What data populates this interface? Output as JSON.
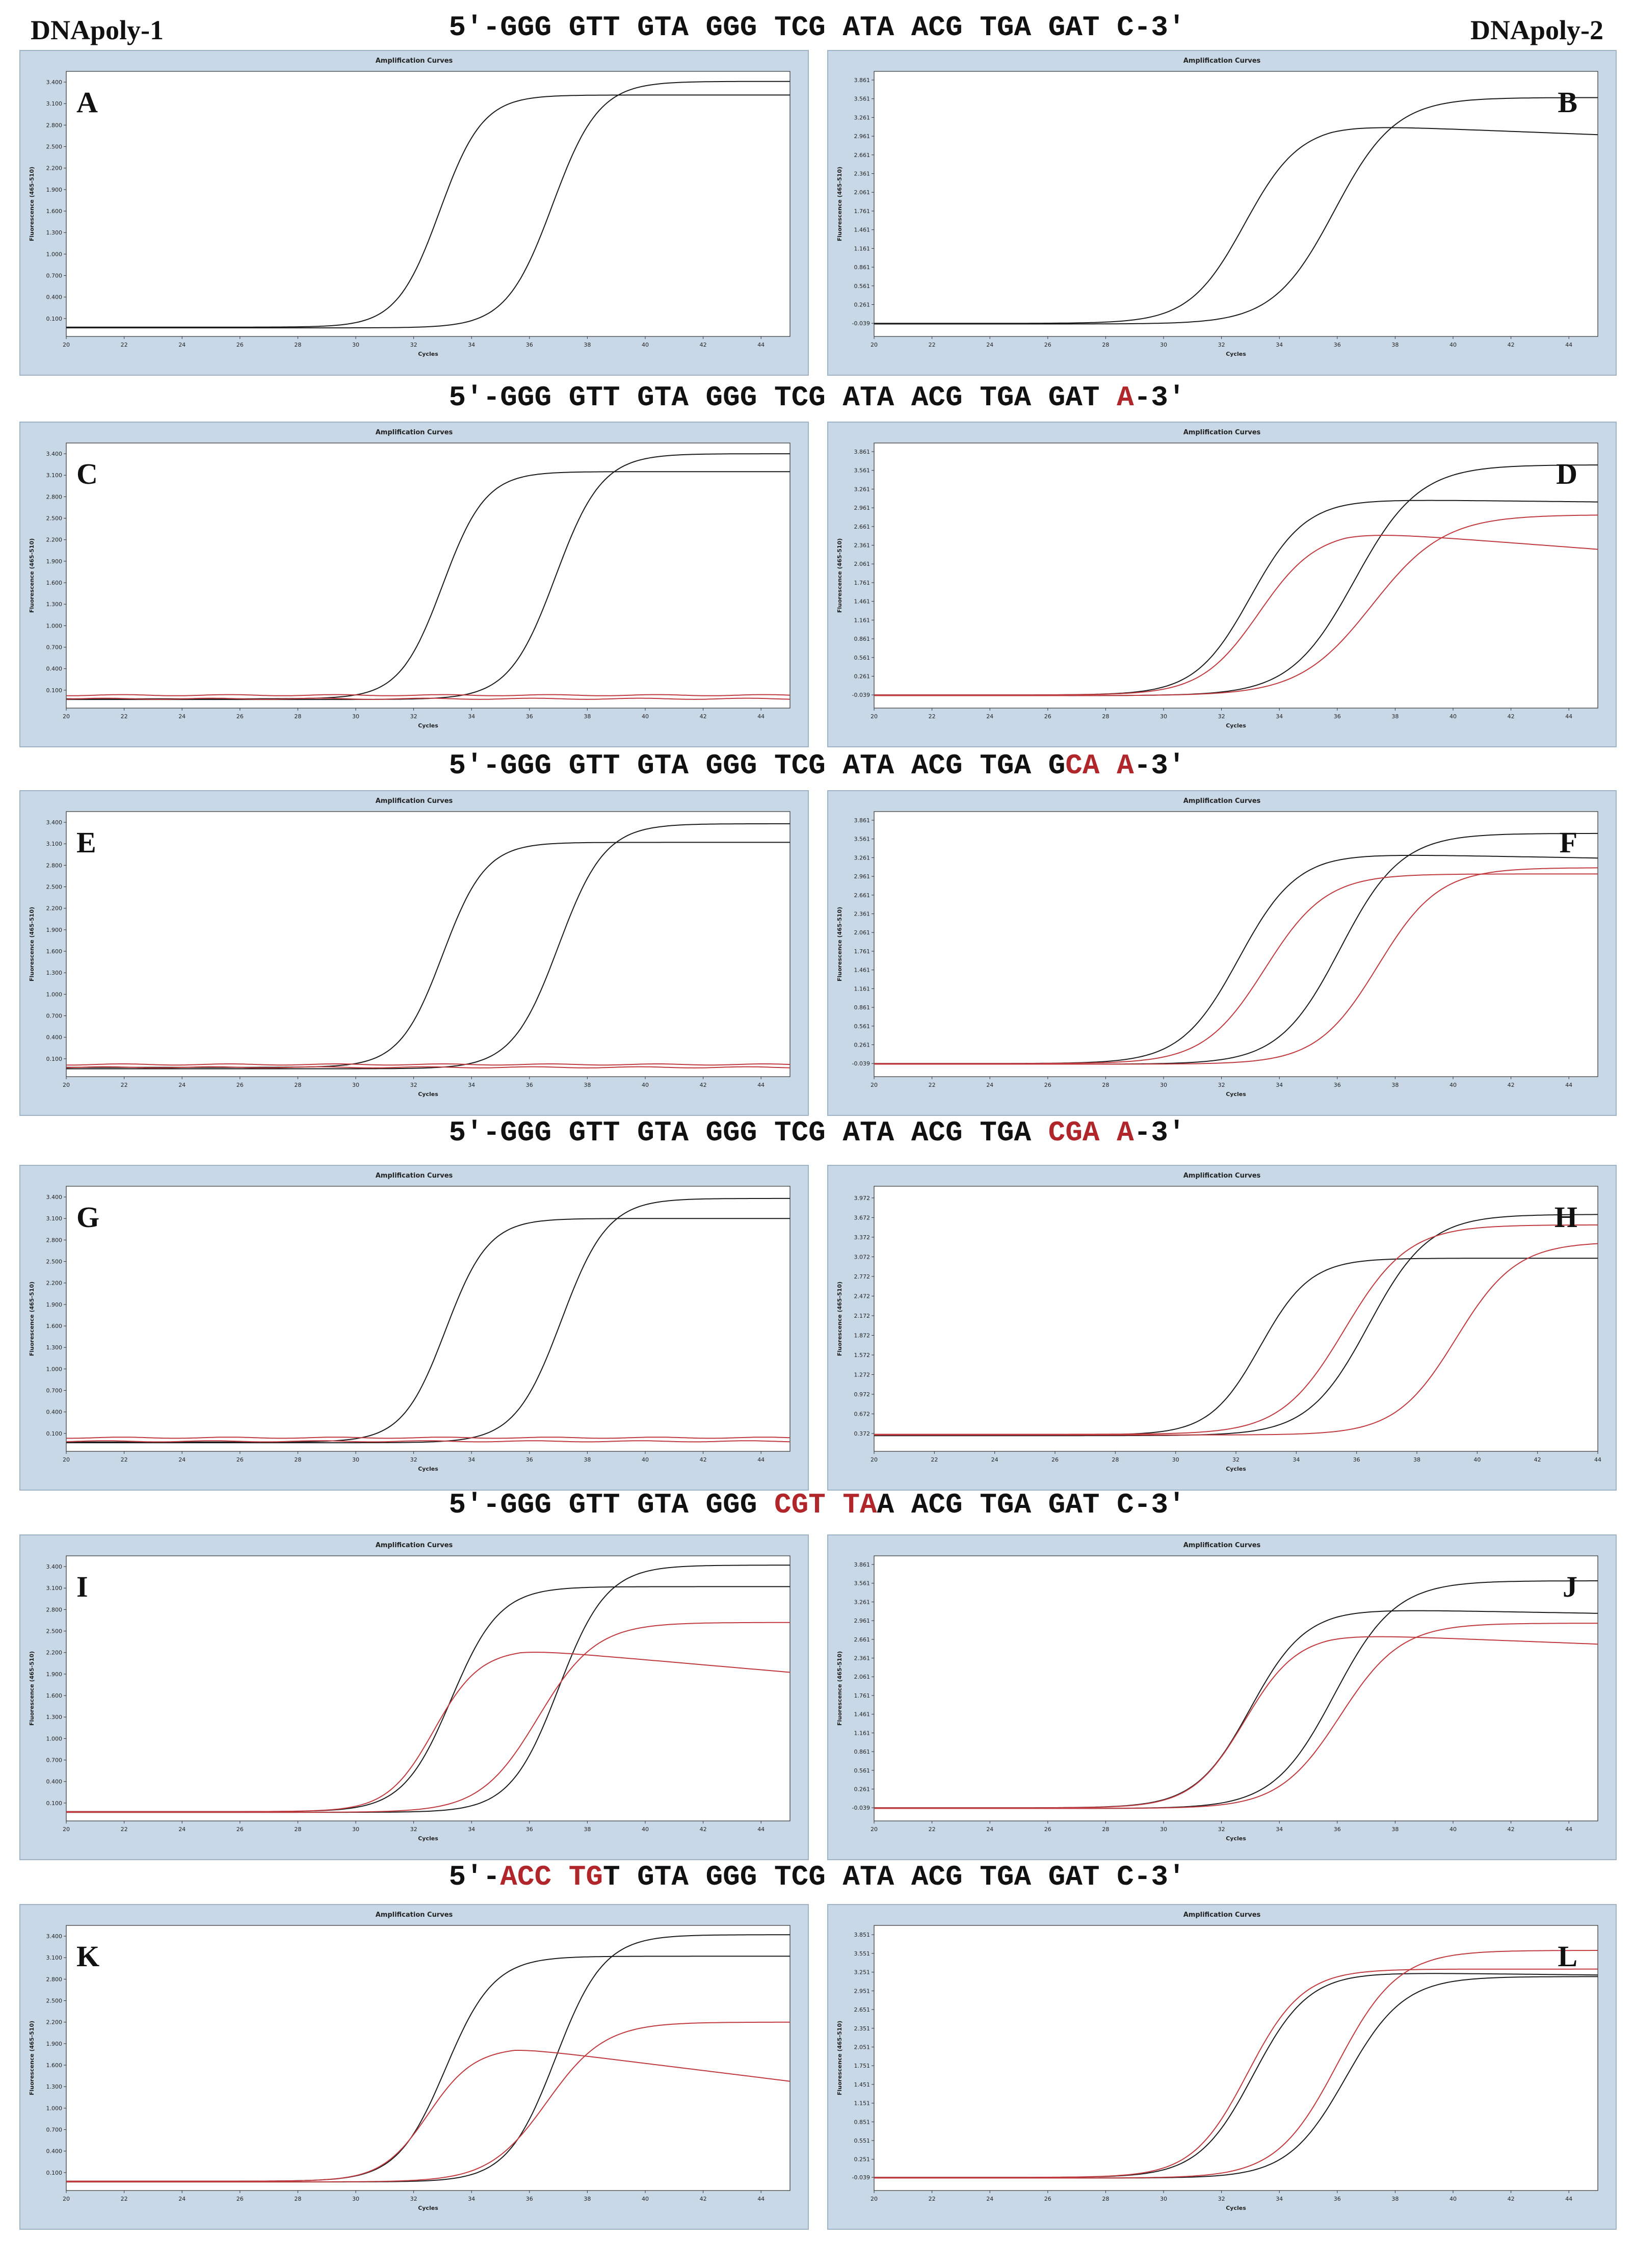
{
  "header": {
    "left_label": "DNApoly-1",
    "right_label": "DNApoly-2"
  },
  "sequences": [
    {
      "segments": [
        {
          "t": "5′-GGG GTT GTA GGG TCG ATA ACG TGA GAT C-3′",
          "red": false
        }
      ]
    },
    {
      "segments": [
        {
          "t": "5′-GGG GTT GTA GGG TCG ATA ACG TGA GAT ",
          "red": false
        },
        {
          "t": "A",
          "red": true
        },
        {
          "t": "-3′",
          "red": false
        }
      ]
    },
    {
      "segments": [
        {
          "t": "5′-GGG GTT GTA GGG TCG ATA ACG TGA G",
          "red": false
        },
        {
          "t": "CA A",
          "red": true
        },
        {
          "t": "-3′",
          "red": false
        }
      ]
    },
    {
      "segments": [
        {
          "t": "5′-GGG GTT GTA GGG TCG ATA ACG TGA ",
          "red": false
        },
        {
          "t": "CGA A",
          "red": true
        },
        {
          "t": "-3′",
          "red": false
        }
      ]
    },
    {
      "segments": [
        {
          "t": "5′-GGG GTT GTA GGG ",
          "red": false
        },
        {
          "t": "CGT TA",
          "red": true
        },
        {
          "t": "A ACG TGA GAT C-3′",
          "red": false
        }
      ]
    },
    {
      "segments": [
        {
          "t": "5′-",
          "red": false
        },
        {
          "t": "ACC TG",
          "red": true
        },
        {
          "t": "T GTA GGG TCG ATA ACG TGA GAT C-3′",
          "red": false
        }
      ]
    }
  ],
  "colors": {
    "target": "#1a1a1a",
    "variant": "#c0393e",
    "panel_bg": "#c9d8e6"
  },
  "chart_data": [
    {
      "letter": "A",
      "type": "line",
      "title": "Amplification Curves",
      "xlabel": "Cycles",
      "ylabel": "Fluorescence (465-510)",
      "xlim": [
        20,
        45
      ],
      "xticks": [
        20,
        22,
        24,
        26,
        28,
        30,
        32,
        34,
        36,
        38,
        40,
        42,
        44
      ],
      "yticks": [
        0.1,
        0.4,
        0.7,
        1.0,
        1.3,
        1.6,
        1.9,
        2.2,
        2.5,
        2.8,
        3.1,
        3.4
      ],
      "ytick_labels": [
        "0.100",
        "0.400",
        "0.700",
        "1.000",
        "1.300",
        "1.600",
        "1.900",
        "2.200",
        "2.500",
        "2.800",
        "3.100",
        "3.400"
      ],
      "ylim": [
        -0.15,
        3.55
      ],
      "series": [
        {
          "color": "black",
          "base": -0.02,
          "max": 3.22,
          "mid": 32.9,
          "k": 1.35,
          "decay": 0
        },
        {
          "color": "black",
          "base": -0.03,
          "max": 3.41,
          "mid": 36.8,
          "k": 1.25,
          "decay": 0
        }
      ]
    },
    {
      "letter": "B",
      "type": "line",
      "title": "Amplification Curves",
      "xlabel": "Cycles",
      "ylabel": "Fluorescence (465-510)",
      "xlim": [
        20,
        45
      ],
      "xticks": [
        20,
        22,
        24,
        26,
        28,
        30,
        32,
        34,
        36,
        38,
        40,
        42,
        44
      ],
      "yticks": [
        -0.039,
        0.261,
        0.561,
        0.861,
        1.161,
        1.461,
        1.761,
        2.061,
        2.361,
        2.661,
        2.961,
        3.261,
        3.561,
        3.861
      ],
      "ytick_labels": [
        "-0.039",
        "0.261",
        "0.561",
        "0.861",
        "1.161",
        "1.461",
        "1.761",
        "2.061",
        "2.361",
        "2.661",
        "2.961",
        "3.261",
        "3.561",
        "3.861"
      ],
      "ylim": [
        -0.25,
        4.0
      ],
      "series": [
        {
          "color": "black",
          "base": -0.04,
          "max": 3.15,
          "mid": 32.8,
          "k": 1.05,
          "decay": 0.018
        },
        {
          "color": "black",
          "base": -0.05,
          "max": 3.58,
          "mid": 35.9,
          "k": 0.95,
          "decay": 0
        }
      ]
    },
    {
      "letter": "C",
      "type": "line",
      "title": "Amplification Curves",
      "xlabel": "Cycles",
      "ylabel": "Fluorescence (465-510)",
      "xlim": [
        20,
        45
      ],
      "xticks": [
        20,
        22,
        24,
        26,
        28,
        30,
        32,
        34,
        36,
        38,
        40,
        42,
        44
      ],
      "yticks": [
        0.1,
        0.4,
        0.7,
        1.0,
        1.3,
        1.6,
        1.9,
        2.2,
        2.5,
        2.8,
        3.1,
        3.4
      ],
      "ytick_labels": [
        "0.100",
        "0.400",
        "0.700",
        "1.000",
        "1.300",
        "1.600",
        "1.900",
        "2.200",
        "2.500",
        "2.800",
        "3.100",
        "3.400"
      ],
      "ylim": [
        -0.15,
        3.55
      ],
      "series": [
        {
          "color": "black",
          "base": -0.02,
          "max": 3.15,
          "mid": 33.0,
          "k": 1.35,
          "decay": 0
        },
        {
          "color": "black",
          "base": -0.03,
          "max": 3.4,
          "mid": 36.9,
          "k": 1.25,
          "decay": 0
        },
        {
          "color": "red",
          "flat": 0.03
        },
        {
          "color": "red",
          "flat": -0.02
        }
      ]
    },
    {
      "letter": "D",
      "type": "line",
      "title": "Amplification Curves",
      "xlabel": "Cycles",
      "ylabel": "Fluorescence (465-510)",
      "xlim": [
        20,
        45
      ],
      "xticks": [
        20,
        22,
        24,
        26,
        28,
        30,
        32,
        34,
        36,
        38,
        40,
        42,
        44
      ],
      "yticks": [
        -0.039,
        0.261,
        0.561,
        0.861,
        1.161,
        1.461,
        1.761,
        2.061,
        2.361,
        2.661,
        2.961,
        3.261,
        3.561,
        3.861
      ],
      "ytick_labels": [
        "-0.039",
        "0.261",
        "0.561",
        "0.861",
        "1.161",
        "1.461",
        "1.761",
        "2.061",
        "2.361",
        "2.661",
        "2.961",
        "3.261",
        "3.561",
        "3.861"
      ],
      "ylim": [
        -0.25,
        4.0
      ],
      "series": [
        {
          "color": "black",
          "base": -0.04,
          "max": 3.1,
          "mid": 33.0,
          "k": 1.05,
          "decay": 0.005
        },
        {
          "color": "black",
          "base": -0.05,
          "max": 3.65,
          "mid": 36.6,
          "k": 0.9,
          "decay": 0
        },
        {
          "color": "red",
          "base": -0.04,
          "max": 2.6,
          "mid": 33.3,
          "k": 1.0,
          "decay": 0.035
        },
        {
          "color": "red",
          "base": -0.05,
          "max": 2.85,
          "mid": 37.2,
          "k": 0.8,
          "decay": 0
        }
      ]
    },
    {
      "letter": "E",
      "type": "line",
      "title": "Amplification Curves",
      "xlabel": "Cycles",
      "ylabel": "Fluorescence (465-510)",
      "xlim": [
        20,
        45
      ],
      "xticks": [
        20,
        22,
        24,
        26,
        28,
        30,
        32,
        34,
        36,
        38,
        40,
        42,
        44
      ],
      "yticks": [
        0.1,
        0.4,
        0.7,
        1.0,
        1.3,
        1.6,
        1.9,
        2.2,
        2.5,
        2.8,
        3.1,
        3.4
      ],
      "ytick_labels": [
        "0.100",
        "0.400",
        "0.700",
        "1.000",
        "1.300",
        "1.600",
        "1.900",
        "2.200",
        "2.500",
        "2.800",
        "3.100",
        "3.400"
      ],
      "ylim": [
        -0.15,
        3.55
      ],
      "series": [
        {
          "color": "black",
          "base": -0.02,
          "max": 3.12,
          "mid": 33.0,
          "k": 1.35,
          "decay": 0
        },
        {
          "color": "black",
          "base": -0.04,
          "max": 3.38,
          "mid": 37.0,
          "k": 1.25,
          "decay": 0
        },
        {
          "color": "red",
          "flat": 0.02
        },
        {
          "color": "red",
          "flat": -0.02
        }
      ]
    },
    {
      "letter": "F",
      "type": "line",
      "title": "Amplification Curves",
      "xlabel": "Cycles",
      "ylabel": "Fluorescence (465-510)",
      "xlim": [
        20,
        45
      ],
      "xticks": [
        20,
        22,
        24,
        26,
        28,
        30,
        32,
        34,
        36,
        38,
        40,
        42,
        44
      ],
      "yticks": [
        -0.039,
        0.261,
        0.561,
        0.861,
        1.161,
        1.461,
        1.761,
        2.061,
        2.361,
        2.661,
        2.961,
        3.261,
        3.561,
        3.861
      ],
      "ytick_labels": [
        "-0.039",
        "0.261",
        "0.561",
        "0.861",
        "1.161",
        "1.461",
        "1.761",
        "2.061",
        "2.361",
        "2.661",
        "2.961",
        "3.261",
        "3.561",
        "3.861"
      ],
      "ylim": [
        -0.25,
        4.0
      ],
      "series": [
        {
          "color": "black",
          "base": -0.04,
          "max": 3.33,
          "mid": 32.6,
          "k": 1.0,
          "decay": 0.008
        },
        {
          "color": "black",
          "base": -0.05,
          "max": 3.65,
          "mid": 36.1,
          "k": 0.95,
          "decay": 0
        },
        {
          "color": "red",
          "base": -0.04,
          "max": 3.0,
          "mid": 33.5,
          "k": 0.95,
          "decay": 0
        },
        {
          "color": "red",
          "base": -0.05,
          "max": 3.1,
          "mid": 37.4,
          "k": 0.95,
          "decay": 0
        }
      ]
    },
    {
      "letter": "G",
      "type": "line",
      "title": "Amplification Curves",
      "xlabel": "Cycles",
      "ylabel": "Fluorescence (465-510)",
      "xlim": [
        20,
        45
      ],
      "xticks": [
        20,
        22,
        24,
        26,
        28,
        30,
        32,
        34,
        36,
        38,
        40,
        42,
        44
      ],
      "yticks": [
        0.1,
        0.4,
        0.7,
        1.0,
        1.3,
        1.6,
        1.9,
        2.2,
        2.5,
        2.8,
        3.1,
        3.4
      ],
      "ytick_labels": [
        "0.100",
        "0.400",
        "0.700",
        "1.000",
        "1.300",
        "1.600",
        "1.900",
        "2.200",
        "2.500",
        "2.800",
        "3.100",
        "3.400"
      ],
      "ylim": [
        -0.15,
        3.55
      ],
      "series": [
        {
          "color": "black",
          "base": -0.02,
          "max": 3.1,
          "mid": 33.1,
          "k": 1.35,
          "decay": 0
        },
        {
          "color": "black",
          "base": -0.03,
          "max": 3.38,
          "mid": 37.1,
          "k": 1.25,
          "decay": 0
        },
        {
          "color": "red",
          "flat": 0.04
        },
        {
          "color": "red",
          "flat": -0.01
        }
      ]
    },
    {
      "letter": "H",
      "type": "line",
      "title": "Amplification Curves",
      "xlabel": "Cycles",
      "ylabel": "Fluorescence (465-510)",
      "xlim": [
        20,
        44
      ],
      "xticks": [
        20,
        22,
        24,
        26,
        28,
        30,
        32,
        34,
        36,
        38,
        40,
        42,
        44
      ],
      "yticks": [
        0.372,
        0.672,
        0.972,
        1.272,
        1.572,
        1.872,
        2.172,
        2.472,
        2.772,
        3.072,
        3.372,
        3.672,
        3.972
      ],
      "ytick_labels": [
        "0.372",
        "0.672",
        "0.972",
        "1.272",
        "1.572",
        "1.872",
        "2.172",
        "2.472",
        "2.772",
        "3.072",
        "3.372",
        "3.672",
        "3.972"
      ],
      "ylim": [
        0.1,
        4.15
      ],
      "series": [
        {
          "color": "black",
          "base": 0.35,
          "max": 3.05,
          "mid": 32.8,
          "k": 1.2,
          "decay": 0
        },
        {
          "color": "black",
          "base": 0.34,
          "max": 3.72,
          "mid": 36.4,
          "k": 1.0,
          "decay": 0
        },
        {
          "color": "red",
          "base": 0.36,
          "max": 3.56,
          "mid": 35.6,
          "k": 0.95,
          "decay": 0
        },
        {
          "color": "red",
          "base": 0.35,
          "max": 3.3,
          "mid": 39.3,
          "k": 1.0,
          "decay": 0
        }
      ]
    },
    {
      "letter": "I",
      "type": "line",
      "title": "Amplification Curves",
      "xlabel": "Cycles",
      "ylabel": "Fluorescence (465-510)",
      "xlim": [
        20,
        45
      ],
      "xticks": [
        20,
        22,
        24,
        26,
        28,
        30,
        32,
        34,
        36,
        38,
        40,
        42,
        44
      ],
      "yticks": [
        0.1,
        0.4,
        0.7,
        1.0,
        1.3,
        1.6,
        1.9,
        2.2,
        2.5,
        2.8,
        3.1,
        3.4
      ],
      "ytick_labels": [
        "0.100",
        "0.400",
        "0.700",
        "1.000",
        "1.300",
        "1.600",
        "1.900",
        "2.200",
        "2.500",
        "2.800",
        "3.100",
        "3.400"
      ],
      "ylim": [
        -0.15,
        3.55
      ],
      "series": [
        {
          "color": "black",
          "base": -0.02,
          "max": 3.12,
          "mid": 33.3,
          "k": 1.2,
          "decay": 0
        },
        {
          "color": "black",
          "base": -0.03,
          "max": 3.42,
          "mid": 37.0,
          "k": 1.2,
          "decay": 0
        },
        {
          "color": "red",
          "base": -0.02,
          "max": 2.25,
          "mid": 32.7,
          "k": 1.25,
          "decay": 0.035
        },
        {
          "color": "red",
          "base": -0.03,
          "max": 2.62,
          "mid": 36.3,
          "k": 1.0,
          "decay": 0
        }
      ]
    },
    {
      "letter": "J",
      "type": "line",
      "title": "Amplification Curves",
      "xlabel": "Cycles",
      "ylabel": "Fluorescence (465-510)",
      "xlim": [
        20,
        45
      ],
      "xticks": [
        20,
        22,
        24,
        26,
        28,
        30,
        32,
        34,
        36,
        38,
        40,
        42,
        44
      ],
      "yticks": [
        -0.039,
        0.261,
        0.561,
        0.861,
        1.161,
        1.461,
        1.761,
        2.061,
        2.361,
        2.661,
        2.961,
        3.261,
        3.561,
        3.861
      ],
      "ytick_labels": [
        "-0.039",
        "0.261",
        "0.561",
        "0.861",
        "1.161",
        "1.461",
        "1.761",
        "2.061",
        "2.361",
        "2.661",
        "2.961",
        "3.261",
        "3.561",
        "3.861"
      ],
      "ylim": [
        -0.25,
        4.0
      ],
      "series": [
        {
          "color": "black",
          "base": -0.04,
          "max": 3.15,
          "mid": 33.0,
          "k": 1.05,
          "decay": 0.008
        },
        {
          "color": "black",
          "base": -0.05,
          "max": 3.6,
          "mid": 35.9,
          "k": 0.95,
          "decay": 0
        },
        {
          "color": "red",
          "base": -0.04,
          "max": 2.75,
          "mid": 32.8,
          "k": 1.1,
          "decay": 0.018
        },
        {
          "color": "red",
          "base": -0.05,
          "max": 2.92,
          "mid": 36.1,
          "k": 0.95,
          "decay": 0
        }
      ]
    },
    {
      "letter": "K",
      "type": "line",
      "title": "Amplification Curves",
      "xlabel": "Cycles",
      "ylabel": "Fluorescence (465-510)",
      "xlim": [
        20,
        45
      ],
      "xticks": [
        20,
        22,
        24,
        26,
        28,
        30,
        32,
        34,
        36,
        38,
        40,
        42,
        44
      ],
      "yticks": [
        0.1,
        0.4,
        0.7,
        1.0,
        1.3,
        1.6,
        1.9,
        2.2,
        2.5,
        2.8,
        3.1,
        3.4
      ],
      "ytick_labels": [
        "0.100",
        "0.400",
        "0.700",
        "1.000",
        "1.300",
        "1.600",
        "1.900",
        "2.200",
        "2.500",
        "2.800",
        "3.100",
        "3.400"
      ],
      "ylim": [
        -0.15,
        3.55
      ],
      "series": [
        {
          "color": "black",
          "base": -0.02,
          "max": 3.12,
          "mid": 33.1,
          "k": 1.2,
          "decay": 0
        },
        {
          "color": "black",
          "base": -0.03,
          "max": 3.42,
          "mid": 36.9,
          "k": 1.2,
          "decay": 0
        },
        {
          "color": "red",
          "base": -0.02,
          "max": 1.85,
          "mid": 32.5,
          "k": 1.25,
          "decay": 0.05
        },
        {
          "color": "red",
          "base": -0.03,
          "max": 2.2,
          "mid": 36.6,
          "k": 1.0,
          "decay": 0
        }
      ]
    },
    {
      "letter": "L",
      "type": "line",
      "title": "Amplification Curves",
      "xlabel": "Cycles",
      "ylabel": "Fluorescence (465-510)",
      "xlim": [
        20,
        45
      ],
      "xticks": [
        20,
        22,
        24,
        26,
        28,
        30,
        32,
        34,
        36,
        38,
        40,
        42,
        44
      ],
      "yticks": [
        -0.039,
        0.251,
        0.551,
        0.851,
        1.151,
        1.451,
        1.751,
        2.051,
        2.351,
        2.651,
        2.951,
        3.251,
        3.551,
        3.851
      ],
      "ytick_labels": [
        "-0.039",
        "0.251",
        "0.551",
        "0.851",
        "1.151",
        "1.451",
        "1.751",
        "2.051",
        "2.351",
        "2.651",
        "2.951",
        "3.251",
        "3.551",
        "3.851"
      ],
      "ylim": [
        -0.25,
        4.0
      ],
      "series": [
        {
          "color": "black",
          "base": -0.04,
          "max": 3.25,
          "mid": 33.1,
          "k": 1.05,
          "decay": 0.005
        },
        {
          "color": "black",
          "base": -0.05,
          "max": 3.18,
          "mid": 36.3,
          "k": 1.0,
          "decay": 0
        },
        {
          "color": "red",
          "base": -0.04,
          "max": 3.3,
          "mid": 32.9,
          "k": 1.05,
          "decay": 0
        },
        {
          "color": "red",
          "base": -0.05,
          "max": 3.6,
          "mid": 36.0,
          "k": 0.95,
          "decay": 0
        }
      ]
    }
  ]
}
